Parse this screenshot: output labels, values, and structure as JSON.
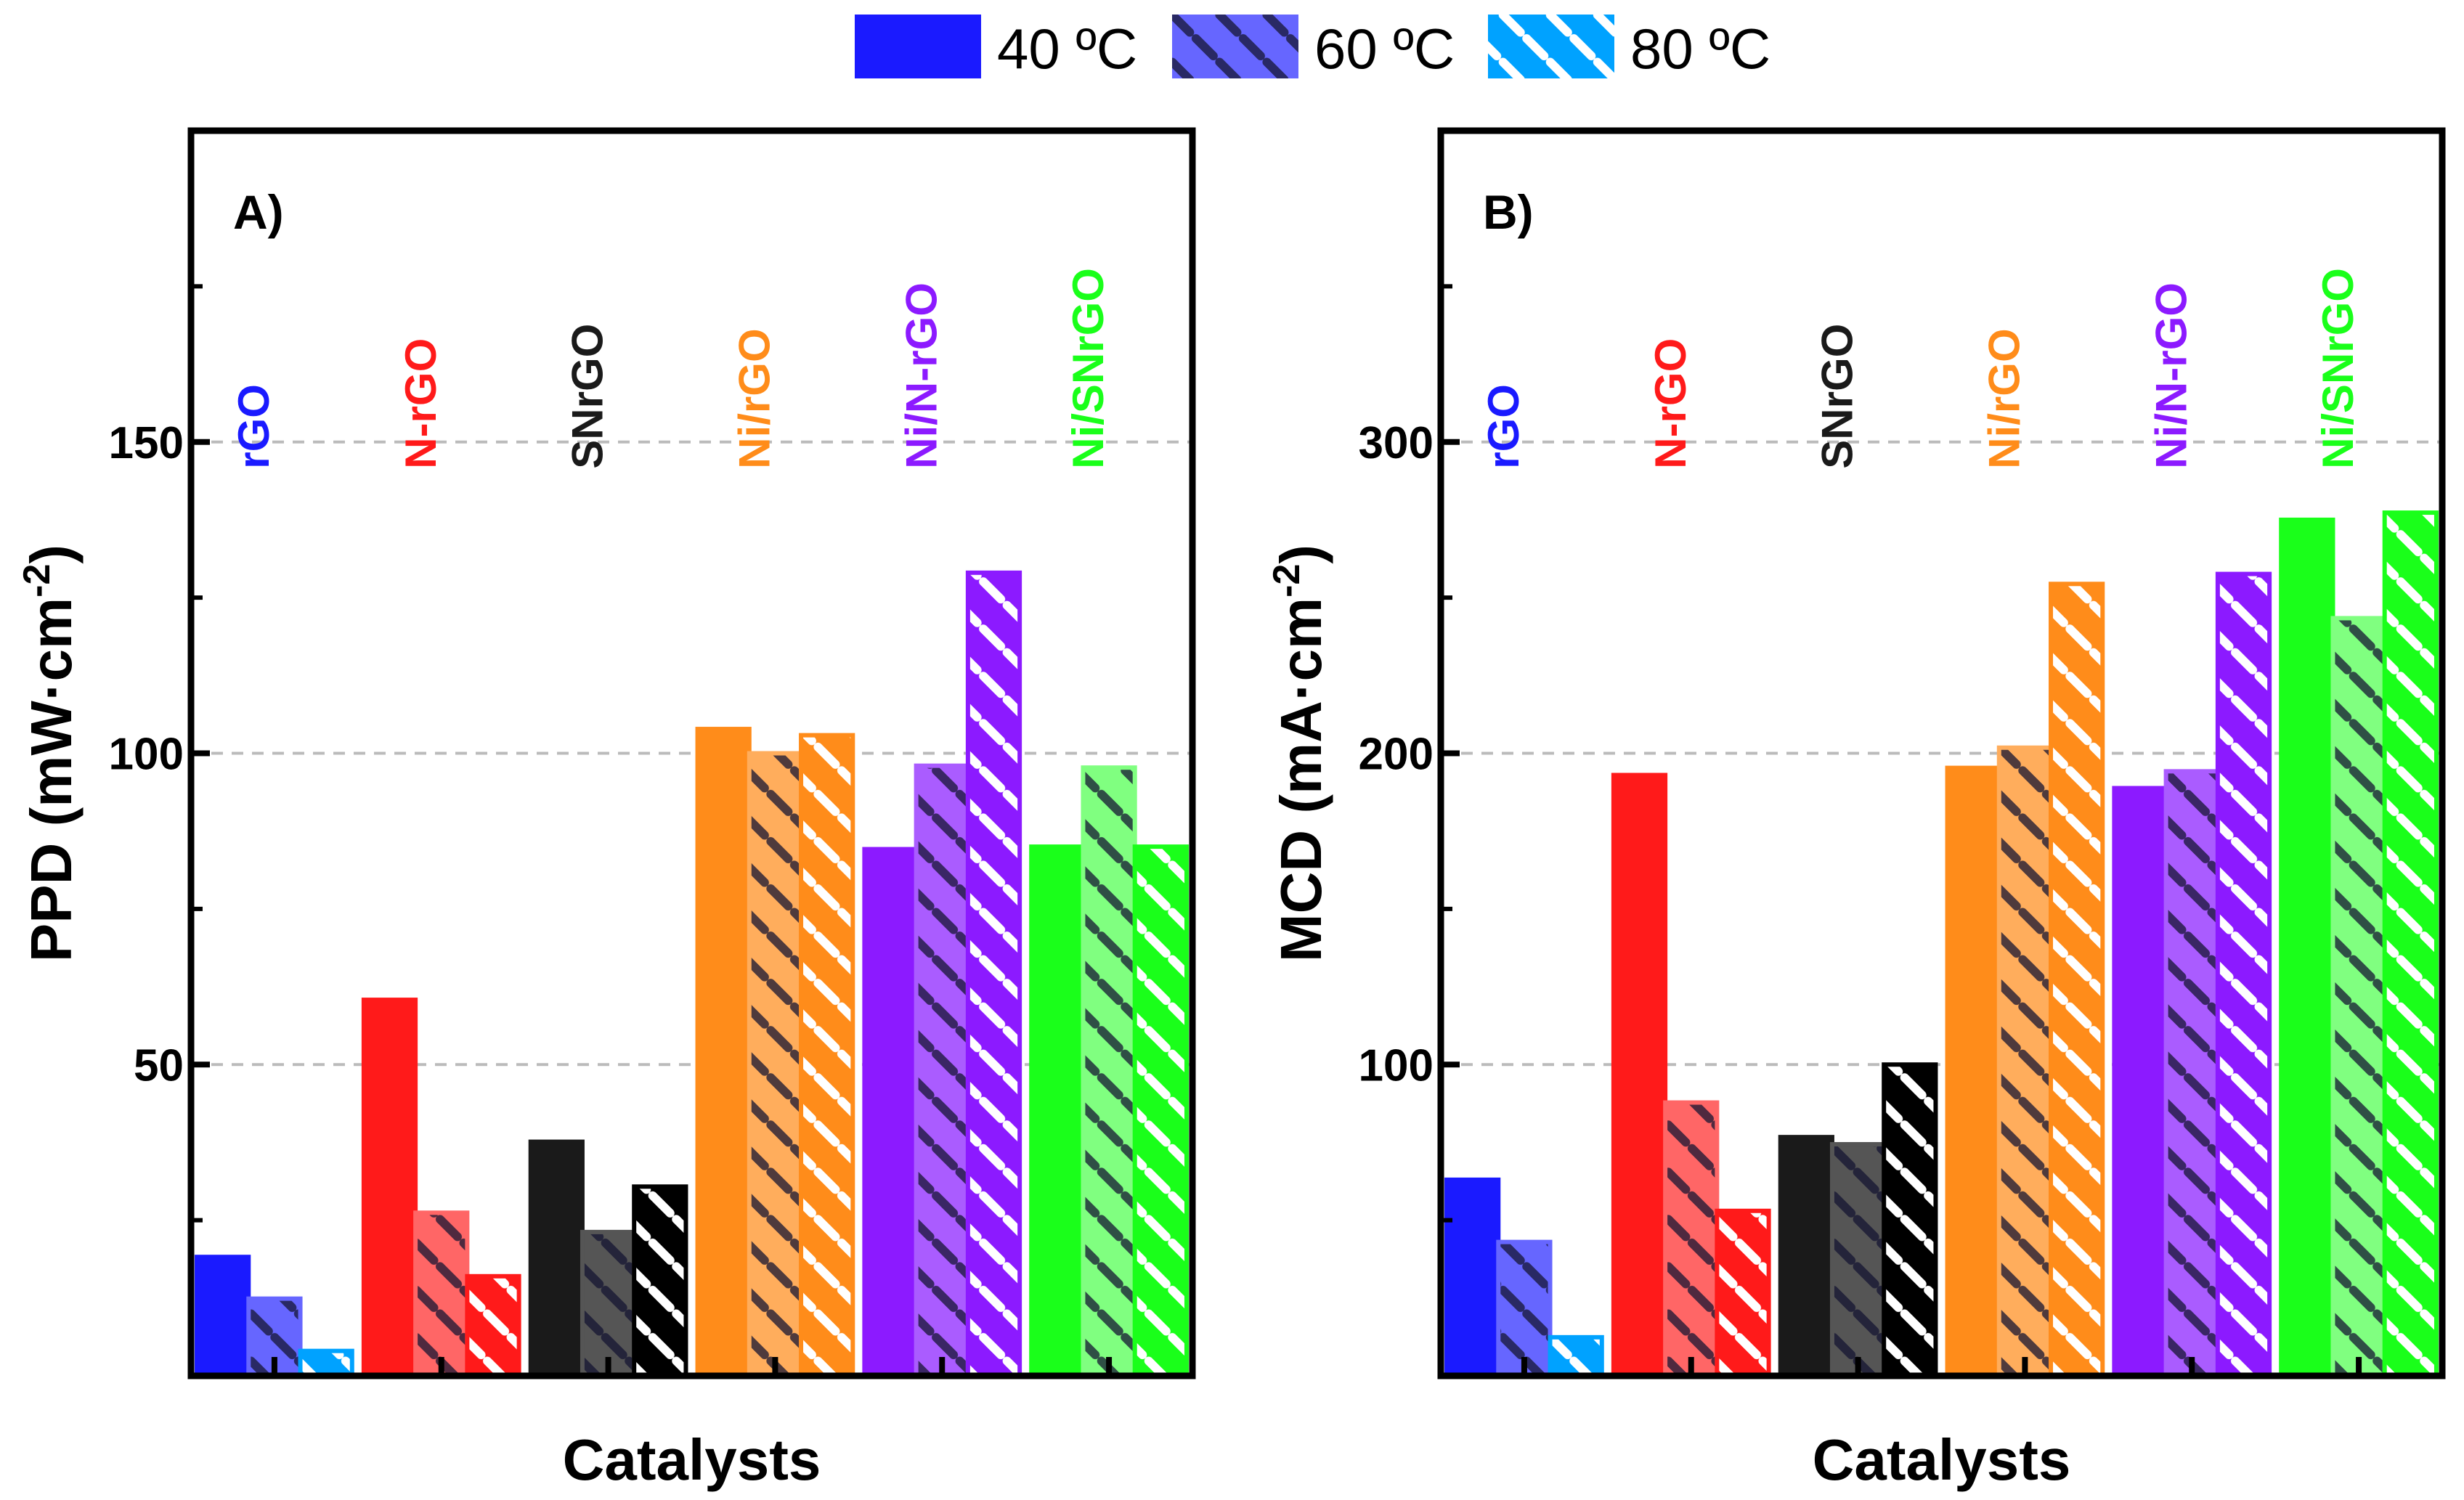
{
  "legend": {
    "placement": "top-center",
    "entries": [
      {
        "label": "40 ºC",
        "style": "solid"
      },
      {
        "label": "60 ºC",
        "style": "dark-hatch"
      },
      {
        "label": "80 ºC",
        "style": "white-hatch"
      }
    ]
  },
  "group_colors": {
    "rGO": [
      "#1a1aff",
      "#6666ff",
      "#00a2ff"
    ],
    "N-rGO": [
      "#ff1a1a",
      "#ff6666",
      "#ff1a1a"
    ],
    "SNrGO": [
      "#1a1a1a",
      "#555555",
      "#000000"
    ],
    "Ni/rGO": [
      "#ff8c1a",
      "#ffad5c",
      "#ff8c1a"
    ],
    "Ni/N-rGO": [
      "#8c1aff",
      "#aa5cff",
      "#8c1aff"
    ],
    "Ni/SNrGO": [
      "#1aff1a",
      "#80ff80",
      "#1aff1a"
    ]
  },
  "chart_data": [
    {
      "type": "bar",
      "panel_label": "A)",
      "xlabel": "Catalysts",
      "ylabel": "PPD (mW·cm",
      "ylabel_sup": "-2",
      "ylabel_end": ")",
      "ylim": [
        0,
        200
      ],
      "yticks": [
        50,
        100,
        150
      ],
      "yticks_minor": [
        25,
        75,
        125,
        175
      ],
      "grid": "dashed horizontal at major ticks",
      "categories": [
        "rGO",
        "N-rGO",
        "SNrGO",
        "Ni/rGO",
        "Ni/N-rGO",
        "Ni/SNrGO"
      ],
      "series": [
        {
          "name": "40 ºC",
          "values": [
            19.1,
            60.4,
            37.6,
            103.9,
            84.6,
            85.0
          ]
        },
        {
          "name": "60 ºC",
          "values": [
            12.4,
            26.2,
            23.1,
            100.0,
            98.0,
            97.7
          ]
        },
        {
          "name": "80 ºC",
          "values": [
            4.0,
            16.0,
            30.4,
            102.9,
            129.0,
            85.0
          ]
        }
      ]
    },
    {
      "type": "bar",
      "panel_label": "B)",
      "xlabel": "Catalysts",
      "ylabel": "MCD (mA·cm",
      "ylabel_sup": "-2",
      "ylabel_end": ")",
      "ylim": [
        0,
        400
      ],
      "yticks": [
        100,
        200,
        300
      ],
      "yticks_minor": [
        50,
        150,
        250,
        350
      ],
      "grid": "dashed horizontal at major ticks",
      "categories": [
        "rGO",
        "N-rGO",
        "SNrGO",
        "Ni/rGO",
        "Ni/N-rGO",
        "Ni/SNrGO"
      ],
      "series": [
        {
          "name": "40 ºC",
          "values": [
            63.0,
            193.0,
            76.7,
            195.3,
            188.8,
            275.0
          ]
        },
        {
          "name": "60 ºC",
          "values": [
            43.0,
            87.8,
            74.4,
            201.8,
            194.2,
            243.4
          ]
        },
        {
          "name": "80 ºC",
          "values": [
            12.4,
            53.0,
            100.0,
            254.4,
            257.6,
            277.3
          ]
        }
      ]
    }
  ]
}
